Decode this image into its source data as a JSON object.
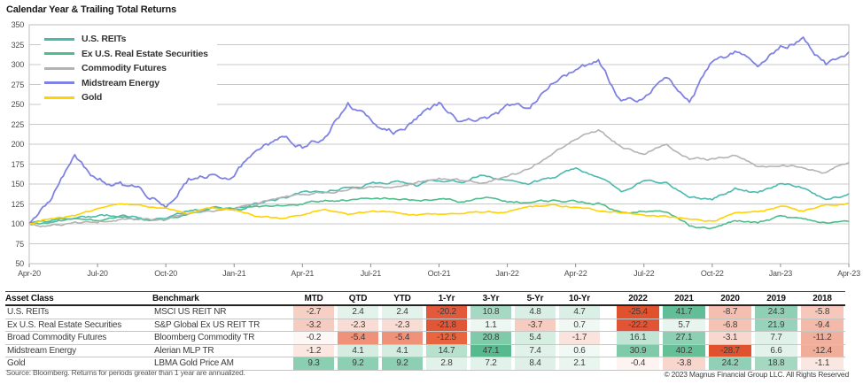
{
  "title": "Calendar Year & Trailing Total Returns",
  "chart": {
    "ylim": [
      50,
      350
    ],
    "ytick_step": 25,
    "x_tick_labels": [
      "Apr-20",
      "Jul-20",
      "Oct-20",
      "Jan-21",
      "Apr-21",
      "Jul-21",
      "Oct-21",
      "Jan-22",
      "Apr-22",
      "Jul-22",
      "Oct-22",
      "Jan-23",
      "Apr-23"
    ],
    "chart_data": {
      "type": "line",
      "title": "Calendar Year & Trailing Total Returns",
      "xlabel": "",
      "ylabel": "",
      "ylim": [
        50,
        350
      ],
      "grid": "horizontal",
      "legend_position": "top-left-inside",
      "x": [
        "Apr-20",
        "May-20",
        "Jun-20",
        "Jul-20",
        "Aug-20",
        "Sep-20",
        "Oct-20",
        "Nov-20",
        "Dec-20",
        "Jan-21",
        "Feb-21",
        "Mar-21",
        "Apr-21",
        "May-21",
        "Jun-21",
        "Jul-21",
        "Aug-21",
        "Sep-21",
        "Oct-21",
        "Nov-21",
        "Dec-21",
        "Jan-22",
        "Feb-22",
        "Mar-22",
        "Apr-22",
        "May-22",
        "Jun-22",
        "Jul-22",
        "Aug-22",
        "Sep-22",
        "Oct-22",
        "Nov-22",
        "Dec-22",
        "Jan-23",
        "Feb-23",
        "Mar-23",
        "Apr-23"
      ],
      "series": [
        {
          "name": "U.S. REITs",
          "color": "#4CB9AE",
          "jitter": 2.8,
          "values": [
            100,
            103,
            108,
            110,
            112,
            108,
            105,
            116,
            118,
            118,
            124,
            131,
            138,
            141,
            148,
            152,
            154,
            148,
            155,
            155,
            162,
            152,
            150,
            158,
            170,
            160,
            140,
            155,
            152,
            134,
            131,
            145,
            138,
            151,
            147,
            131,
            138
          ]
        },
        {
          "name": "Ex U.S. Real Estate Securities",
          "color": "#4CBE8C",
          "jitter": 2.2,
          "values": [
            100,
            100,
            106,
            104,
            108,
            106,
            104,
            114,
            119,
            120,
            121,
            122,
            126,
            129,
            130,
            130,
            132,
            129,
            131,
            127,
            132,
            128,
            127,
            129,
            128,
            126,
            114,
            118,
            114,
            98,
            95,
            104,
            101,
            109,
            105,
            101,
            103
          ]
        },
        {
          "name": "Commodity Futures",
          "color": "#B3B3B3",
          "jitter": 2.6,
          "values": [
            100,
            97,
            100,
            103,
            107,
            105,
            106,
            111,
            116,
            119,
            125,
            131,
            136,
            141,
            143,
            147,
            146,
            151,
            159,
            153,
            152,
            160,
            168,
            190,
            210,
            218,
            197,
            188,
            202,
            182,
            181,
            187,
            173,
            176,
            168,
            163,
            177
          ]
        },
        {
          "name": "Midstream Energy",
          "color": "#7F82E2",
          "jitter": 5.5,
          "values": [
            100,
            135,
            188,
            152,
            153,
            138,
            124,
            158,
            162,
            158,
            196,
            205,
            196,
            210,
            252,
            228,
            216,
            234,
            250,
            226,
            233,
            246,
            242,
            278,
            290,
            306,
            250,
            255,
            286,
            258,
            300,
            312,
            297,
            325,
            331,
            300,
            316
          ]
        },
        {
          "name": "Gold",
          "color": "#FFD200",
          "jitter": 1.6,
          "values": [
            100,
            108,
            110,
            118,
            126,
            122,
            119,
            113,
            120,
            118,
            110,
            107,
            112,
            120,
            112,
            116,
            115,
            111,
            113,
            113,
            115,
            114,
            121,
            123,
            120,
            117,
            115,
            111,
            109,
            105,
            104,
            112,
            115,
            122,
            116,
            125,
            126
          ]
        }
      ]
    }
  },
  "table": {
    "headers": {
      "asset": "Asset Class",
      "benchmark": "Benchmark",
      "periods": [
        "MTD",
        "QTD",
        "YTD",
        "1-Yr",
        "3-Yr",
        "5-Yr",
        "10-Yr"
      ],
      "years": [
        "2022",
        "2021",
        "2020",
        "2019",
        "2018"
      ]
    },
    "rows": [
      {
        "asset": "U.S. REITs",
        "benchmark": "MSCI US REIT NR",
        "values": [
          "-2.7",
          "2.4",
          "2.4",
          "-20.2",
          "10.8",
          "4.8",
          "4.7",
          "-25.4",
          "41.7",
          "-8.7",
          "24.3",
          "-5.8"
        ],
        "colors": [
          "#F6CFC5",
          "#E3F3EB",
          "#E3F3EB",
          "#E2593B",
          "#A6D9C3",
          "#D9EFE5",
          "#DAEFE5",
          "#E0512E",
          "#62BE96",
          "#F4BFB1",
          "#8FD0B5",
          "#F6C8BB"
        ]
      },
      {
        "asset": "Ex U.S. Real Estate Securities",
        "benchmark": "S&P Global Ex US REIT TR",
        "values": [
          "-3.2",
          "-2.3",
          "-2.3",
          "-21.8",
          "1.1",
          "-3.7",
          "0.7",
          "-22.2",
          "5.7",
          "-6.8",
          "21.9",
          "-9.4"
        ],
        "colors": [
          "#F6CCC1",
          "#F9DCD4",
          "#F9DCD4",
          "#E15637",
          "#EDF7F2",
          "#F7CCC0",
          "#F0F8F4",
          "#E15536",
          "#E7F5EE",
          "#F5C3B4",
          "#97D3BA",
          "#F3BAAA"
        ]
      },
      {
        "asset": "Broad Commodity Futures",
        "benchmark": "Bloomberg Commodity TR",
        "values": [
          "-0.2",
          "-5.4",
          "-5.4",
          "-12.5",
          "20.8",
          "5.4",
          "-1.7",
          "16.1",
          "27.1",
          "-3.1",
          "7.7",
          "-11.2"
        ],
        "colors": [
          "#FDF7F5",
          "#F0927A",
          "#F0927A",
          "#E86540",
          "#7FCAA9",
          "#D6EEE2",
          "#FAE3DC",
          "#C0E5D4",
          "#8CCFB3",
          "#F8D7CF",
          "#E0F1E9",
          "#F1B09E"
        ]
      },
      {
        "asset": "Midstream Energy",
        "benchmark": "Alerian MLP TR",
        "values": [
          "-1.2",
          "4.1",
          "4.1",
          "14.7",
          "47.1",
          "7.4",
          "0.6",
          "30.9",
          "40.2",
          "-28.7",
          "6.6",
          "-12.4"
        ],
        "colors": [
          "#FBE6E0",
          "#D5EDE1",
          "#D5EDE1",
          "#B7E0CD",
          "#57BA8E",
          "#E1F2EA",
          "#F1F9F5",
          "#7ECAA9",
          "#65BF97",
          "#E0512E",
          "#E3F3EB",
          "#F0AD9A"
        ]
      },
      {
        "asset": "Gold",
        "benchmark": "LBMA Gold Price AM",
        "values": [
          "9.3",
          "9.2",
          "9.2",
          "2.8",
          "7.2",
          "8.4",
          "2.1",
          "-0.4",
          "-3.8",
          "24.2",
          "18.8",
          "-1.1"
        ],
        "colors": [
          "#8BCFB2",
          "#8CCFB2",
          "#8CCFB2",
          "#E1F2EA",
          "#E1F2EA",
          "#DEF0E7",
          "#E9F6F0",
          "#FDF4F2",
          "#F8D6CD",
          "#90D0B6",
          "#A5D8C1",
          "#FBE7E1"
        ]
      }
    ]
  },
  "footers": {
    "source": "Source: Bloomberg. Returns for periods greater than 1 year are annualized.",
    "copyright": "© 2023 Magnus Financial Group LLC. All Rights Reserved"
  }
}
